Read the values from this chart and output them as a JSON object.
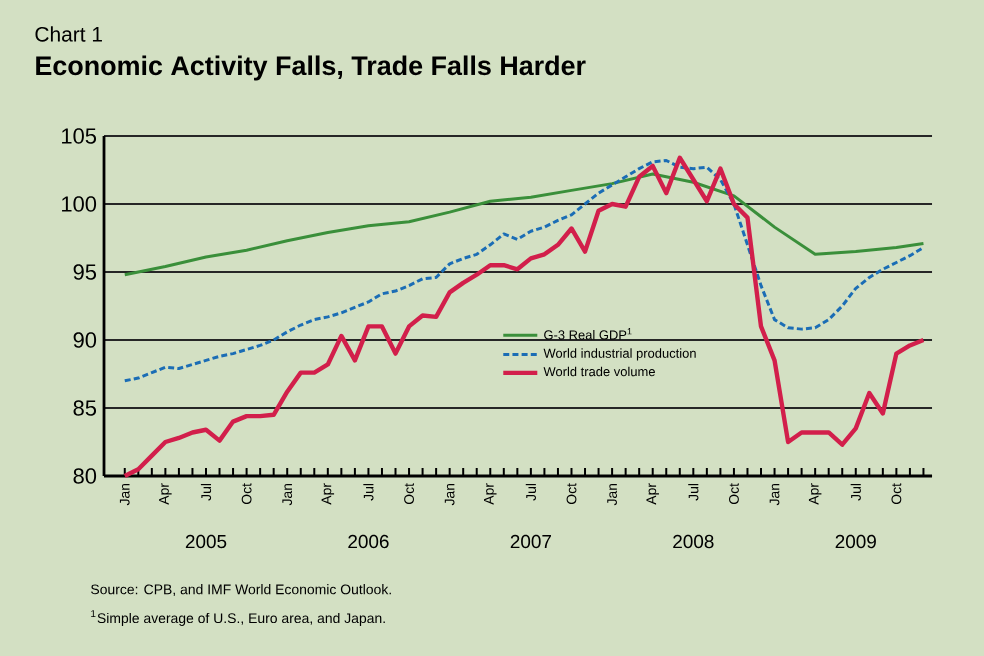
{
  "chart_data": {
    "type": "line",
    "title": "Economic Activity Falls, Trade Falls Harder",
    "subtitle": "Chart 1",
    "x2lim": [
      "2004-11-15",
      "2009-12-20"
    ],
    "x2ticks": [
      {
        "value": "2005-07",
        "label": "2005"
      },
      {
        "value": "2006-07",
        "label": "2006"
      },
      {
        "value": "2007-07",
        "label": "2007"
      },
      {
        "value": "2008-07",
        "label": "2008"
      },
      {
        "value": "2009-07",
        "label": "2009"
      }
    ],
    "annotations": [
      "Source: CPB, and IMF  World Economic Outlook.",
      "$^{1}$Simple average of U.S., Euro area, and Japan."
    ],
    "xlim": [
      "2004-11-15",
      "2009-12-20"
    ],
    "ylim": [
      80,
      105
    ],
    "yticks": [
      80,
      85,
      90,
      95,
      100,
      105
    ],
    "xticks": [
      {
        "value": "2005-01",
        "label": "Jan"
      },
      {
        "value": "2005-02",
        "label": null
      },
      {
        "value": "2005-03",
        "label": null
      },
      {
        "value": "2005-04",
        "label": "Apr"
      },
      {
        "value": "2005-05",
        "label": null
      },
      {
        "value": "2005-06",
        "label": null
      },
      {
        "value": "2005-07",
        "label": "Jul"
      },
      {
        "value": "2005-08",
        "label": null
      },
      {
        "value": "2005-09",
        "label": null
      },
      {
        "value": "2005-10",
        "label": "Oct"
      },
      {
        "value": "2005-11",
        "label": null
      },
      {
        "value": "2005-12",
        "label": null
      },
      {
        "value": "2006-01",
        "label": "Jan"
      },
      {
        "value": "2006-02",
        "label": null
      },
      {
        "value": "2006-03",
        "label": null
      },
      {
        "value": "2006-04",
        "label": "Apr"
      },
      {
        "value": "2006-05",
        "label": null
      },
      {
        "value": "2006-06",
        "label": null
      },
      {
        "value": "2006-07",
        "label": "Jul"
      },
      {
        "value": "2006-08",
        "label": null
      },
      {
        "value": "2006-09",
        "label": null
      },
      {
        "value": "2006-10",
        "label": "Oct"
      },
      {
        "value": "2006-11",
        "label": null
      },
      {
        "value": "2006-12",
        "label": null
      },
      {
        "value": "2007-01",
        "label": "Jan"
      },
      {
        "value": "2007-02",
        "label": null
      },
      {
        "value": "2007-03",
        "label": null
      },
      {
        "value": "2007-04",
        "label": "Apr"
      },
      {
        "value": "2007-05",
        "label": null
      },
      {
        "value": "2007-06",
        "label": null
      },
      {
        "value": "2007-07",
        "label": "Jul"
      },
      {
        "value": "2007-08",
        "label": null
      },
      {
        "value": "2007-09",
        "label": null
      },
      {
        "value": "2007-10",
        "label": "Oct"
      },
      {
        "value": "2007-11",
        "label": null
      },
      {
        "value": "2007-12",
        "label": null
      },
      {
        "value": "2008-01",
        "label": "Jan"
      },
      {
        "value": "2008-02",
        "label": null
      },
      {
        "value": "2008-03",
        "label": null
      },
      {
        "value": "2008-04",
        "label": "Apr"
      },
      {
        "value": "2008-05",
        "label": null
      },
      {
        "value": "2008-06",
        "label": null
      },
      {
        "value": "2008-07",
        "label": "Jul"
      },
      {
        "value": "2008-08",
        "label": null
      },
      {
        "value": "2008-09",
        "label": null
      },
      {
        "value": "2008-10",
        "label": "Oct"
      },
      {
        "value": "2008-11",
        "label": null
      },
      {
        "value": "2008-12",
        "label": null
      },
      {
        "value": "2009-01",
        "label": "Jan"
      },
      {
        "value": "2009-02",
        "label": null
      },
      {
        "value": "2009-03",
        "label": null
      },
      {
        "value": "2009-04",
        "label": "Apr"
      },
      {
        "value": "2009-05",
        "label": null
      },
      {
        "value": "2009-06",
        "label": null
      },
      {
        "value": "2009-07",
        "label": "Jul"
      },
      {
        "value": "2009-08",
        "label": null
      },
      {
        "value": "2009-09",
        "label": null
      },
      {
        "value": "2009-10",
        "label": "Oct"
      },
      {
        "value": "2009-11",
        "label": null
      },
      {
        "value": "2009-12",
        "label": null
      }
    ],
    "grid": "y",
    "legend": "center",
    "series": [
      {
        "name": "G-3 Real GDP$^{1}$",
        "color": "#3a8f3a",
        "line_style": "solid",
        "x": [
          "2005-01",
          "2005-04",
          "2005-07",
          "2005-10",
          "2006-01",
          "2006-04",
          "2006-07",
          "2006-10",
          "2007-01",
          "2007-04",
          "2007-07",
          "2007-10",
          "2008-01",
          "2008-04",
          "2008-07",
          "2008-10",
          "2009-01",
          "2009-04",
          "2009-07",
          "2009-10",
          "2009-12"
        ],
        "values": [
          94.8,
          95.4,
          96.1,
          96.6,
          97.3,
          97.9,
          98.4,
          98.7,
          99.4,
          100.2,
          100.5,
          101.0,
          101.5,
          102.2,
          101.6,
          100.6,
          98.3,
          96.3,
          96.5,
          96.8,
          97.1
        ]
      },
      {
        "name": "World industrial production",
        "color": "#1b6db5",
        "line_style": "dashed",
        "x": [
          "2005-01",
          "2005-02",
          "2005-03",
          "2005-04",
          "2005-05",
          "2005-06",
          "2005-07",
          "2005-08",
          "2005-09",
          "2005-10",
          "2005-11",
          "2005-12",
          "2006-01",
          "2006-02",
          "2006-03",
          "2006-04",
          "2006-05",
          "2006-06",
          "2006-07",
          "2006-08",
          "2006-09",
          "2006-10",
          "2006-11",
          "2006-12",
          "2007-01",
          "2007-02",
          "2007-03",
          "2007-04",
          "2007-05",
          "2007-06",
          "2007-07",
          "2007-08",
          "2007-09",
          "2007-10",
          "2007-11",
          "2007-12",
          "2008-01",
          "2008-02",
          "2008-03",
          "2008-04",
          "2008-05",
          "2008-06",
          "2008-07",
          "2008-08",
          "2008-09",
          "2008-10",
          "2008-11",
          "2008-12",
          "2009-01",
          "2009-02",
          "2009-03",
          "2009-04",
          "2009-05",
          "2009-06",
          "2009-07",
          "2009-08",
          "2009-09",
          "2009-10",
          "2009-11",
          "2009-12"
        ],
        "values": [
          87.0,
          87.2,
          87.6,
          88.0,
          87.9,
          88.2,
          88.5,
          88.8,
          89.0,
          89.3,
          89.6,
          90.0,
          90.6,
          91.1,
          91.5,
          91.7,
          92.0,
          92.4,
          92.8,
          93.4,
          93.6,
          94.0,
          94.5,
          94.6,
          95.6,
          96.0,
          96.3,
          97.0,
          97.8,
          97.4,
          98.0,
          98.3,
          98.8,
          99.2,
          100.0,
          100.8,
          101.4,
          102.0,
          102.6,
          103.1,
          103.2,
          102.7,
          102.6,
          102.7,
          101.8,
          100.0,
          97.0,
          94.0,
          91.5,
          90.9,
          90.8,
          90.9,
          91.5,
          92.5,
          93.8,
          94.6,
          95.2,
          95.7,
          96.2,
          96.8
        ]
      },
      {
        "name": "World trade volume",
        "color": "#d21f4b",
        "line_style": "solid",
        "x": [
          "2005-01",
          "2005-02",
          "2005-03",
          "2005-04",
          "2005-05",
          "2005-06",
          "2005-07",
          "2005-08",
          "2005-09",
          "2005-10",
          "2005-11",
          "2005-12",
          "2006-01",
          "2006-02",
          "2006-03",
          "2006-04",
          "2006-05",
          "2006-06",
          "2006-07",
          "2006-08",
          "2006-09",
          "2006-10",
          "2006-11",
          "2006-12",
          "2007-01",
          "2007-02",
          "2007-03",
          "2007-04",
          "2007-05",
          "2007-06",
          "2007-07",
          "2007-08",
          "2007-09",
          "2007-10",
          "2007-11",
          "2007-12",
          "2008-01",
          "2008-02",
          "2008-03",
          "2008-04",
          "2008-05",
          "2008-06",
          "2008-07",
          "2008-08",
          "2008-09",
          "2008-10",
          "2008-11",
          "2008-12",
          "2009-01",
          "2009-02",
          "2009-03",
          "2009-04",
          "2009-05",
          "2009-06",
          "2009-07",
          "2009-08",
          "2009-09",
          "2009-10",
          "2009-11",
          "2009-12"
        ],
        "values": [
          80.0,
          80.5,
          81.5,
          82.5,
          82.8,
          83.2,
          83.4,
          82.6,
          84.0,
          84.4,
          84.4,
          84.5,
          86.2,
          87.6,
          87.6,
          88.2,
          90.3,
          88.5,
          91.0,
          91.0,
          89.0,
          91.0,
          91.8,
          91.7,
          93.5,
          94.2,
          94.8,
          95.5,
          95.5,
          95.2,
          96.0,
          96.3,
          97.0,
          98.2,
          96.5,
          99.5,
          100.0,
          99.8,
          102.0,
          102.8,
          100.8,
          103.4,
          101.8,
          100.2,
          102.6,
          100.0,
          99.0,
          91.0,
          88.5,
          82.5,
          83.2,
          83.2,
          83.2,
          82.3,
          83.5,
          86.1,
          84.6,
          89.0,
          89.6,
          90.0
        ]
      }
    ]
  }
}
